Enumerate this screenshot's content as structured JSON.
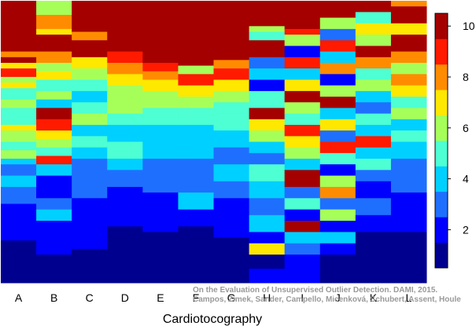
{
  "chart_data": {
    "type": "heatmap",
    "title": "",
    "xlabel": "Cardiotocography",
    "ylabel": "",
    "categories": [
      "A",
      "B",
      "C",
      "D",
      "E",
      "F",
      "G",
      "H",
      "I",
      "J",
      "K",
      "L"
    ],
    "colorbar": {
      "min": 0.5,
      "max": 10.5,
      "ticks": [
        2,
        4,
        6,
        8,
        10
      ]
    },
    "grid": false,
    "legend": "colorbar-right",
    "columns": [
      {
        "name": "A",
        "segments": [
          [
            0.18,
            10
          ],
          [
            0.2,
            8
          ],
          [
            0.22,
            10
          ],
          [
            0.24,
            7
          ],
          [
            0.27,
            9
          ],
          [
            0.29,
            6
          ],
          [
            0.31,
            7
          ],
          [
            0.35,
            5
          ],
          [
            0.38,
            6
          ],
          [
            0.44,
            5
          ],
          [
            0.46,
            7
          ],
          [
            0.5,
            6
          ],
          [
            0.53,
            5
          ],
          [
            0.56,
            6
          ],
          [
            0.58,
            4
          ],
          [
            0.62,
            3
          ],
          [
            0.66,
            4
          ],
          [
            0.72,
            3
          ],
          [
            0.78,
            2
          ],
          [
            0.85,
            2
          ],
          [
            0.9,
            1
          ],
          [
            1.0,
            1
          ]
        ]
      },
      {
        "name": "B",
        "segments": [
          [
            0.05,
            6
          ],
          [
            0.1,
            8
          ],
          [
            0.12,
            7
          ],
          [
            0.18,
            10
          ],
          [
            0.22,
            8
          ],
          [
            0.25,
            6
          ],
          [
            0.28,
            7
          ],
          [
            0.32,
            5
          ],
          [
            0.35,
            6
          ],
          [
            0.38,
            4
          ],
          [
            0.42,
            10
          ],
          [
            0.46,
            9
          ],
          [
            0.49,
            7
          ],
          [
            0.52,
            6
          ],
          [
            0.55,
            5
          ],
          [
            0.58,
            9
          ],
          [
            0.62,
            4
          ],
          [
            0.7,
            2
          ],
          [
            0.74,
            3
          ],
          [
            0.78,
            4
          ],
          [
            0.85,
            2
          ],
          [
            0.9,
            2
          ],
          [
            1.0,
            1
          ]
        ]
      },
      {
        "name": "C",
        "segments": [
          [
            0.02,
            10
          ],
          [
            0.11,
            10
          ],
          [
            0.14,
            8
          ],
          [
            0.2,
            10
          ],
          [
            0.24,
            7
          ],
          [
            0.28,
            6
          ],
          [
            0.32,
            5
          ],
          [
            0.36,
            4
          ],
          [
            0.4,
            5
          ],
          [
            0.44,
            6
          ],
          [
            0.48,
            4
          ],
          [
            0.52,
            5
          ],
          [
            0.56,
            4
          ],
          [
            0.65,
            3
          ],
          [
            0.7,
            3
          ],
          [
            0.74,
            2
          ],
          [
            0.8,
            2
          ],
          [
            0.88,
            2
          ],
          [
            1.0,
            1
          ]
        ]
      },
      {
        "name": "D",
        "segments": [
          [
            0.18,
            10
          ],
          [
            0.22,
            9
          ],
          [
            0.26,
            8
          ],
          [
            0.3,
            7
          ],
          [
            0.35,
            6
          ],
          [
            0.4,
            6
          ],
          [
            0.44,
            5
          ],
          [
            0.5,
            4
          ],
          [
            0.56,
            5
          ],
          [
            0.6,
            4
          ],
          [
            0.66,
            3
          ],
          [
            0.72,
            2
          ],
          [
            0.8,
            2
          ],
          [
            0.88,
            1
          ],
          [
            1.0,
            1
          ]
        ]
      },
      {
        "name": "E",
        "segments": [
          [
            0.22,
            10
          ],
          [
            0.25,
            9
          ],
          [
            0.28,
            8
          ],
          [
            0.32,
            7
          ],
          [
            0.38,
            6
          ],
          [
            0.44,
            5
          ],
          [
            0.5,
            4
          ],
          [
            0.56,
            4
          ],
          [
            0.62,
            3
          ],
          [
            0.68,
            3
          ],
          [
            0.74,
            2
          ],
          [
            0.82,
            2
          ],
          [
            0.9,
            1
          ],
          [
            1.0,
            1
          ]
        ]
      },
      {
        "name": "F",
        "segments": [
          [
            0.23,
            10
          ],
          [
            0.26,
            6
          ],
          [
            0.3,
            9
          ],
          [
            0.34,
            7
          ],
          [
            0.38,
            6
          ],
          [
            0.44,
            5
          ],
          [
            0.5,
            4
          ],
          [
            0.56,
            4
          ],
          [
            0.62,
            3
          ],
          [
            0.68,
            3
          ],
          [
            0.74,
            4
          ],
          [
            0.8,
            2
          ],
          [
            0.88,
            1
          ],
          [
            1.0,
            1
          ]
        ]
      },
      {
        "name": "G",
        "segments": [
          [
            0.21,
            10
          ],
          [
            0.24,
            8
          ],
          [
            0.28,
            9
          ],
          [
            0.32,
            7
          ],
          [
            0.36,
            6
          ],
          [
            0.4,
            5
          ],
          [
            0.46,
            5
          ],
          [
            0.52,
            4
          ],
          [
            0.58,
            3
          ],
          [
            0.64,
            4
          ],
          [
            0.7,
            3
          ],
          [
            0.76,
            2
          ],
          [
            0.84,
            2
          ],
          [
            0.92,
            1
          ],
          [
            1.0,
            1
          ]
        ]
      },
      {
        "name": "H",
        "segments": [
          [
            0.09,
            10
          ],
          [
            0.11,
            6
          ],
          [
            0.14,
            5
          ],
          [
            0.2,
            10
          ],
          [
            0.24,
            3
          ],
          [
            0.28,
            4
          ],
          [
            0.32,
            2
          ],
          [
            0.38,
            5
          ],
          [
            0.42,
            10
          ],
          [
            0.46,
            7
          ],
          [
            0.5,
            6
          ],
          [
            0.54,
            4
          ],
          [
            0.58,
            3
          ],
          [
            0.64,
            5
          ],
          [
            0.7,
            4
          ],
          [
            0.76,
            3
          ],
          [
            0.82,
            4
          ],
          [
            0.86,
            2
          ],
          [
            0.9,
            7
          ],
          [
            0.95,
            1
          ],
          [
            1.0,
            2
          ]
        ]
      },
      {
        "name": "I",
        "segments": [
          [
            0.1,
            10
          ],
          [
            0.12,
            9
          ],
          [
            0.16,
            6
          ],
          [
            0.2,
            2
          ],
          [
            0.24,
            9
          ],
          [
            0.28,
            4
          ],
          [
            0.32,
            7
          ],
          [
            0.36,
            10
          ],
          [
            0.4,
            6
          ],
          [
            0.44,
            5
          ],
          [
            0.48,
            9
          ],
          [
            0.52,
            7
          ],
          [
            0.56,
            6
          ],
          [
            0.6,
            4
          ],
          [
            0.66,
            10
          ],
          [
            0.7,
            3
          ],
          [
            0.74,
            5
          ],
          [
            0.78,
            2
          ],
          [
            0.82,
            10
          ],
          [
            0.86,
            4
          ],
          [
            0.9,
            3
          ],
          [
            1.0,
            2
          ]
        ]
      },
      {
        "name": "J",
        "segments": [
          [
            0.06,
            10
          ],
          [
            0.1,
            6
          ],
          [
            0.14,
            3
          ],
          [
            0.18,
            9
          ],
          [
            0.22,
            4
          ],
          [
            0.26,
            8
          ],
          [
            0.3,
            2
          ],
          [
            0.34,
            6
          ],
          [
            0.38,
            10
          ],
          [
            0.42,
            4
          ],
          [
            0.46,
            7
          ],
          [
            0.5,
            3
          ],
          [
            0.54,
            9
          ],
          [
            0.58,
            5
          ],
          [
            0.62,
            2
          ],
          [
            0.66,
            6
          ],
          [
            0.7,
            8
          ],
          [
            0.74,
            3
          ],
          [
            0.78,
            6
          ],
          [
            0.82,
            2
          ],
          [
            0.86,
            4
          ],
          [
            0.9,
            2
          ],
          [
            1.0,
            1
          ]
        ]
      },
      {
        "name": "K",
        "segments": [
          [
            0.04,
            10
          ],
          [
            0.08,
            5
          ],
          [
            0.12,
            7
          ],
          [
            0.16,
            6
          ],
          [
            0.2,
            10
          ],
          [
            0.24,
            8
          ],
          [
            0.28,
            5
          ],
          [
            0.32,
            6
          ],
          [
            0.36,
            4
          ],
          [
            0.4,
            3
          ],
          [
            0.44,
            5
          ],
          [
            0.48,
            4
          ],
          [
            0.52,
            9
          ],
          [
            0.56,
            4
          ],
          [
            0.6,
            5
          ],
          [
            0.64,
            3
          ],
          [
            0.7,
            2
          ],
          [
            0.76,
            3
          ],
          [
            0.82,
            2
          ],
          [
            0.9,
            1
          ],
          [
            1.0,
            1
          ]
        ]
      },
      {
        "name": "L",
        "segments": [
          [
            0.02,
            8
          ],
          [
            0.08,
            10
          ],
          [
            0.12,
            7
          ],
          [
            0.18,
            10
          ],
          [
            0.22,
            8
          ],
          [
            0.26,
            6
          ],
          [
            0.3,
            8
          ],
          [
            0.34,
            7
          ],
          [
            0.38,
            5
          ],
          [
            0.42,
            6
          ],
          [
            0.46,
            4
          ],
          [
            0.5,
            5
          ],
          [
            0.56,
            4
          ],
          [
            0.62,
            3
          ],
          [
            0.68,
            3
          ],
          [
            0.74,
            2
          ],
          [
            0.82,
            2
          ],
          [
            0.9,
            1
          ],
          [
            1.0,
            1
          ]
        ]
      }
    ]
  },
  "watermark": {
    "line1": "On the Evaluation of Unsupervised Outlier Detection. DAMI, 2015.",
    "line2": "Campos, Zimek, Sander, Campello, Micenková, Schubert, Assent, Houle"
  },
  "colors": {
    "palette": [
      "#00008f",
      "#0000ff",
      "#1f6fff",
      "#00d0ff",
      "#4dffd2",
      "#a6ff59",
      "#ffe800",
      "#ff8c00",
      "#ff1a00",
      "#a50000"
    ]
  }
}
